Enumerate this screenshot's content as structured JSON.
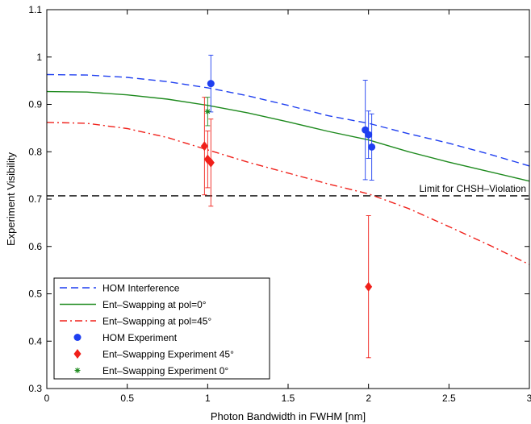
{
  "chart_data": {
    "type": "line",
    "xlabel": "Photon Bandwidth in FWHM [nm]",
    "ylabel": "Experiment Visibility",
    "xlim": [
      0,
      3
    ],
    "ylim": [
      0.3,
      1.1
    ],
    "xticks": [
      "0",
      "0.5",
      "1",
      "1.5",
      "2",
      "2.5",
      "3"
    ],
    "yticks": [
      "0.3",
      "0.4",
      "0.5",
      "0.6",
      "0.7",
      "0.8",
      "0.9",
      "1",
      "1.1"
    ],
    "grid": false,
    "legend_position": "bottom-left",
    "colors": {
      "blue": "#1f3ff0",
      "green": "#1e8a1e",
      "red": "#f0201a",
      "black": "#000000"
    },
    "curves": [
      {
        "name": "HOM Interference",
        "style": "dashed",
        "color": "#1f3ff0",
        "x": [
          0,
          0.25,
          0.5,
          0.75,
          1,
          1.25,
          1.5,
          1.75,
          2,
          2.25,
          2.5,
          2.75,
          3
        ],
        "y": [
          0.963,
          0.962,
          0.957,
          0.948,
          0.935,
          0.918,
          0.898,
          0.876,
          0.86,
          0.838,
          0.818,
          0.795,
          0.77
        ]
      },
      {
        "name": "Ent–Swapping at pol=0°",
        "style": "solid",
        "color": "#1e8a1e",
        "x": [
          0,
          0.25,
          0.5,
          0.75,
          1,
          1.25,
          1.5,
          1.75,
          2,
          2.25,
          2.5,
          2.75,
          3
        ],
        "y": [
          0.927,
          0.926,
          0.92,
          0.911,
          0.898,
          0.882,
          0.863,
          0.843,
          0.825,
          0.8,
          0.778,
          0.758,
          0.738
        ]
      },
      {
        "name": "Ent–Swapping at pol=45°",
        "style": "dashdot",
        "color": "#f0201a",
        "x": [
          0,
          0.25,
          0.5,
          0.75,
          1,
          1.25,
          1.5,
          1.75,
          2,
          2.25,
          2.5,
          2.75,
          3
        ],
        "y": [
          0.862,
          0.86,
          0.849,
          0.83,
          0.804,
          0.778,
          0.755,
          0.732,
          0.711,
          0.68,
          0.642,
          0.603,
          0.562
        ]
      }
    ],
    "threshold": {
      "y": 0.707,
      "label": "Limit for CHSH–Violation",
      "style": "dashed",
      "color": "#000000"
    },
    "points": [
      {
        "name": "HOM Experiment",
        "marker": "circle",
        "color": "#1f3ff0",
        "data": [
          {
            "x": 1.02,
            "y": 0.944,
            "err": 0.06
          },
          {
            "x": 1.98,
            "y": 0.846,
            "err": 0.105
          },
          {
            "x": 2.0,
            "y": 0.836,
            "err": 0.05
          },
          {
            "x": 2.02,
            "y": 0.81,
            "err": 0.07
          }
        ]
      },
      {
        "name": "Ent–Swapping Experiment 45°",
        "marker": "diamond",
        "color": "#f0201a",
        "data": [
          {
            "x": 0.98,
            "y": 0.812,
            "err": 0.103
          },
          {
            "x": 1.0,
            "y": 0.784,
            "err": 0.06
          },
          {
            "x": 1.02,
            "y": 0.777,
            "err": 0.092
          },
          {
            "x": 2.0,
            "y": 0.515,
            "err": 0.15
          }
        ]
      },
      {
        "name": "Ent–Swapping Experiment 0°",
        "marker": "asterisk",
        "color": "#1e8a1e",
        "data": [
          {
            "x": 1.0,
            "y": 0.885,
            "err": 0.03
          }
        ]
      }
    ],
    "legend": [
      {
        "label": "HOM Interference",
        "kind": "line",
        "style": "dashed",
        "color": "#1f3ff0"
      },
      {
        "label": "Ent–Swapping at pol=0°",
        "kind": "line",
        "style": "solid",
        "color": "#1e8a1e"
      },
      {
        "label": "Ent–Swapping at pol=45°",
        "kind": "line",
        "style": "dashdot",
        "color": "#f0201a"
      },
      {
        "label": "HOM Experiment",
        "kind": "marker",
        "marker": "circle",
        "color": "#1f3ff0"
      },
      {
        "label": "Ent–Swapping Experiment 45°",
        "kind": "marker",
        "marker": "diamond",
        "color": "#f0201a"
      },
      {
        "label": "Ent–Swapping Experiment 0°",
        "kind": "marker",
        "marker": "asterisk",
        "color": "#1e8a1e"
      }
    ]
  }
}
